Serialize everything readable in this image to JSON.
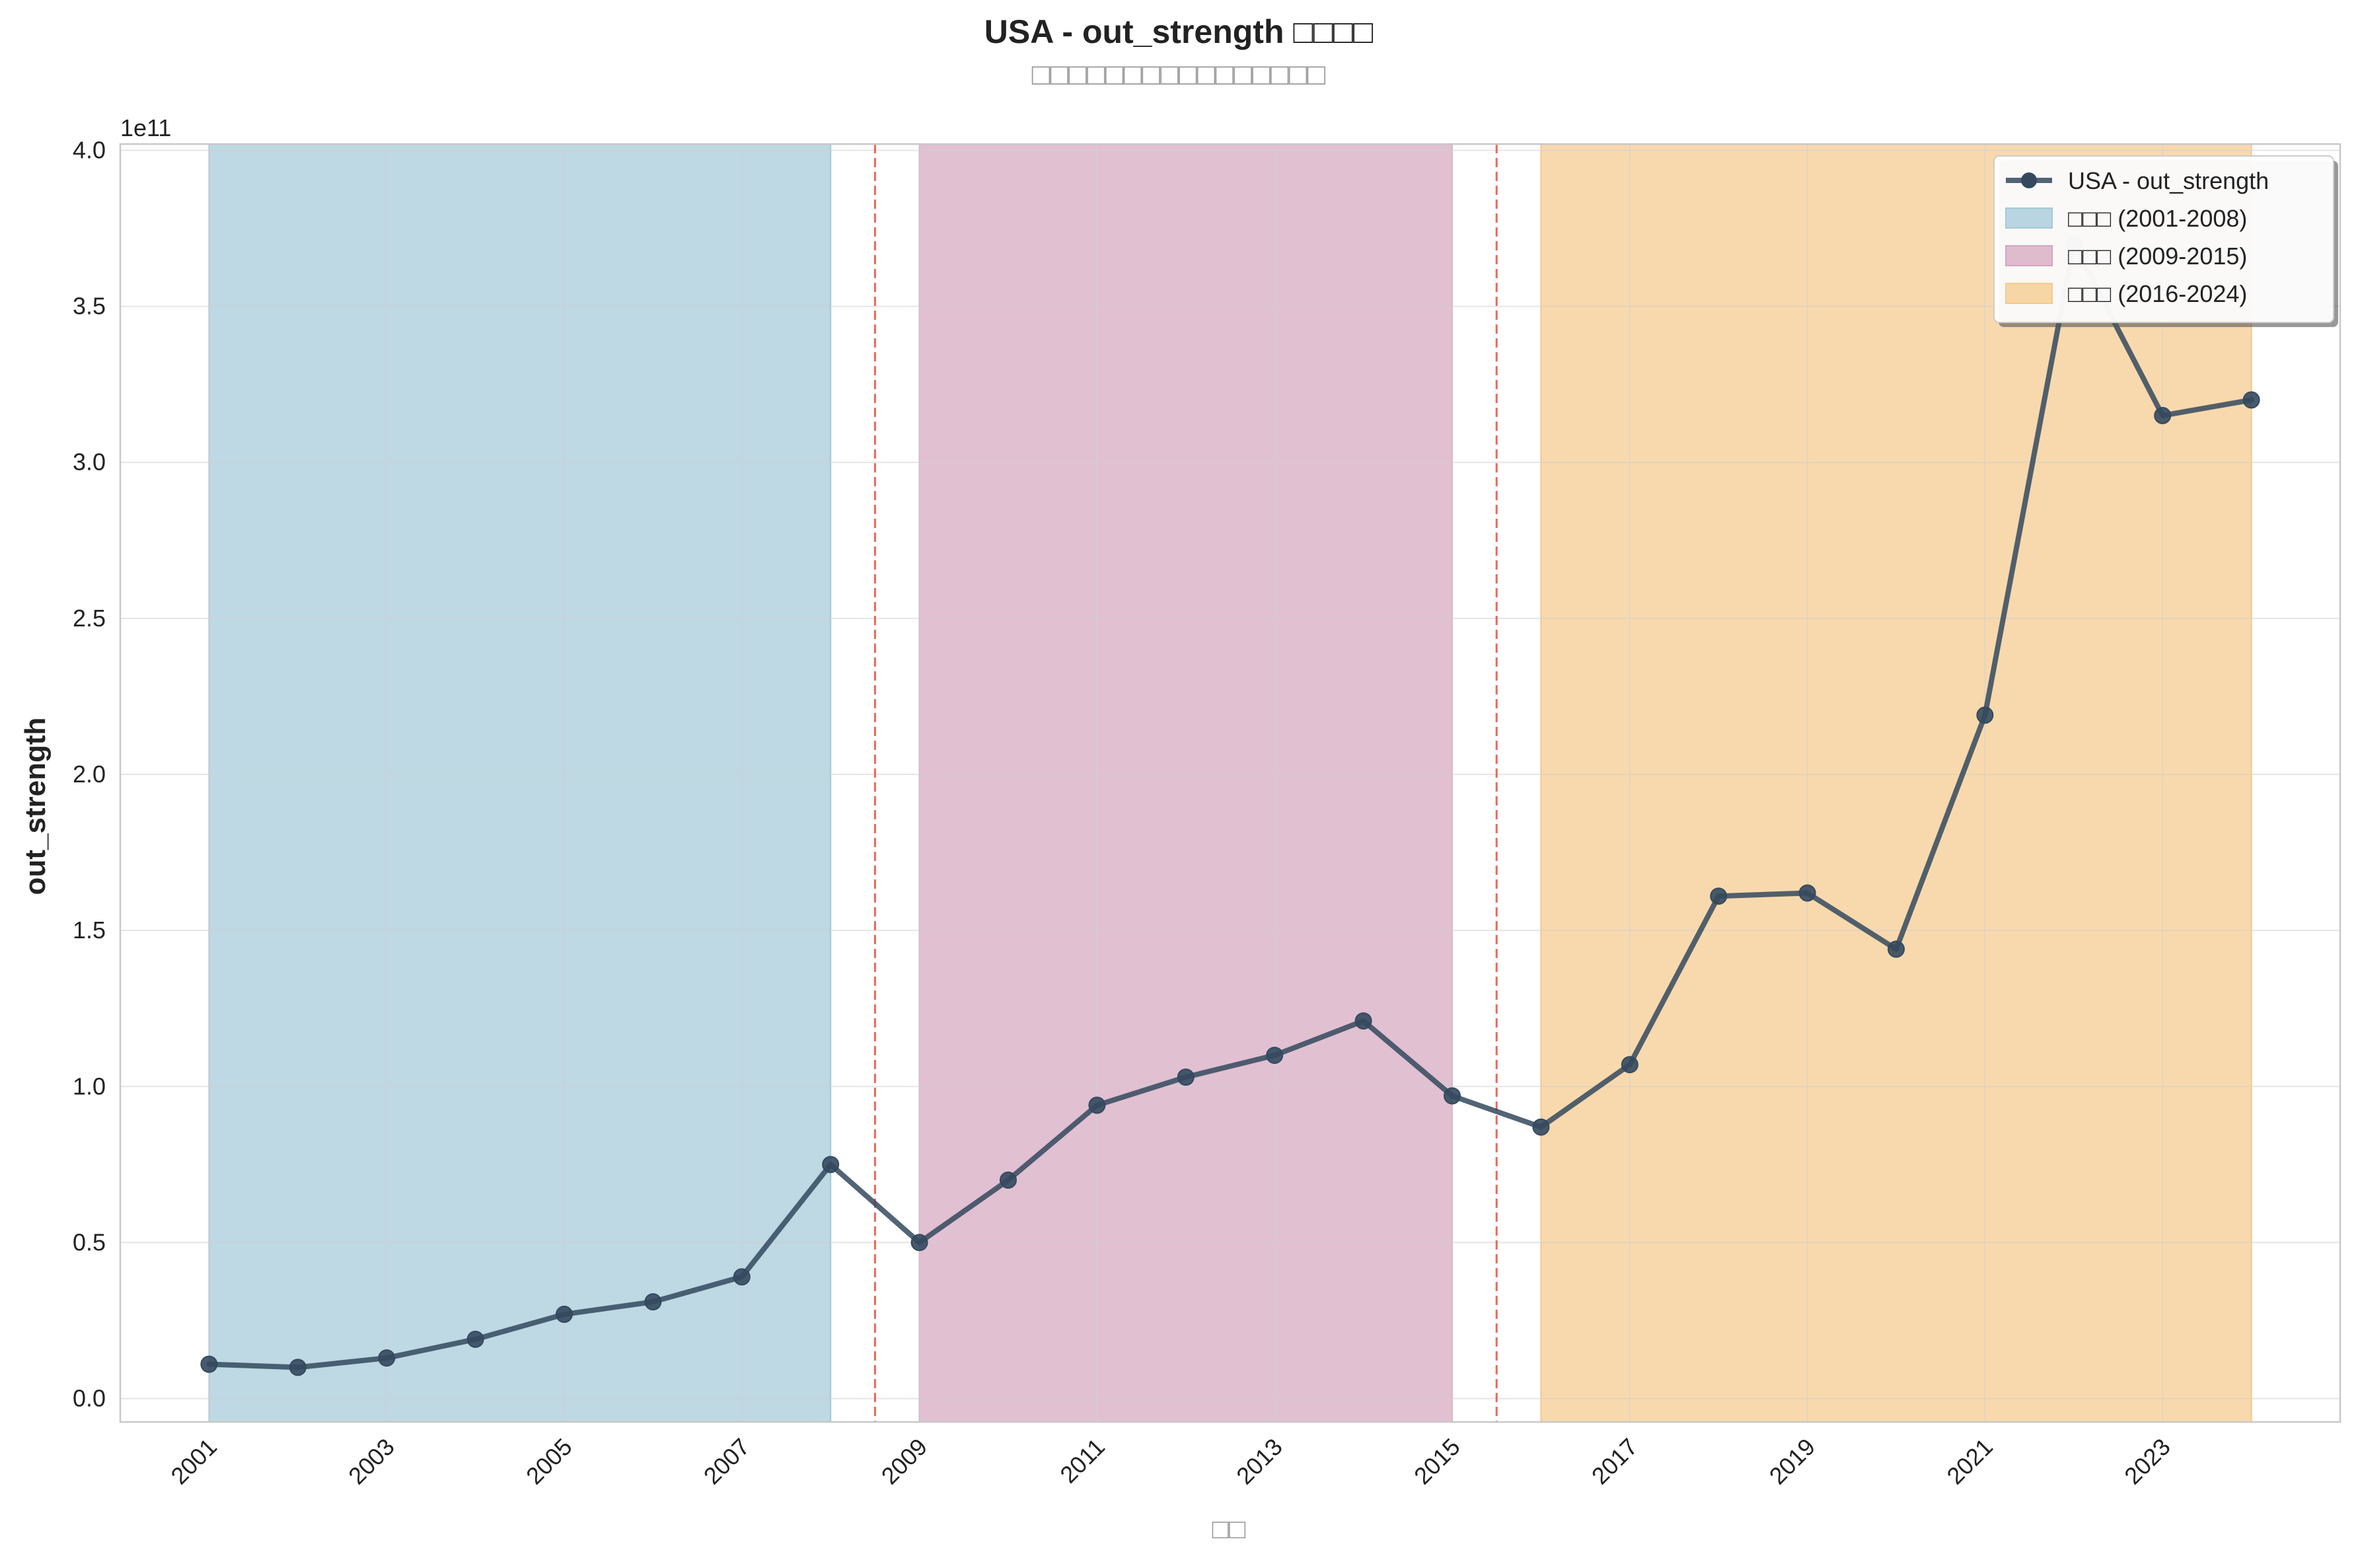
{
  "chart_data": {
    "type": "line",
    "title": "USA - out_strength □□□□",
    "subtitle": "□□□□□□□□□□□□□□□□",
    "xlabel": "□□",
    "ylabel": "out_strength",
    "y_offset_label": "1e11",
    "xlim": [
      2000.0,
      2025.0
    ],
    "ylim": [
      -0.075,
      4.02
    ],
    "x_ticks": [
      2001,
      2003,
      2005,
      2007,
      2009,
      2011,
      2013,
      2015,
      2017,
      2019,
      2021,
      2023
    ],
    "y_ticks": [
      0.0,
      0.5,
      1.0,
      1.5,
      2.0,
      2.5,
      3.0,
      3.5,
      4.0
    ],
    "y_tick_labels": [
      "0.0",
      "0.5",
      "1.0",
      "1.5",
      "2.0",
      "2.5",
      "3.0",
      "3.5",
      "4.0"
    ],
    "grid": true,
    "legend_position": "top-right",
    "series": [
      {
        "name": "USA - out_strength",
        "color": "#34495e",
        "x": [
          2001,
          2002,
          2003,
          2004,
          2005,
          2006,
          2007,
          2008,
          2009,
          2010,
          2011,
          2012,
          2013,
          2014,
          2015,
          2016,
          2017,
          2018,
          2019,
          2020,
          2021,
          2022,
          2023,
          2024
        ],
        "y": [
          0.11,
          0.1,
          0.13,
          0.19,
          0.27,
          0.31,
          0.39,
          0.75,
          0.5,
          0.7,
          0.94,
          1.03,
          1.1,
          1.21,
          0.97,
          0.87,
          1.07,
          1.61,
          1.62,
          1.44,
          2.19,
          3.7,
          3.15,
          3.2
        ]
      }
    ],
    "periods": [
      {
        "label": "□□□ (2001-2008)",
        "start": 2001,
        "end": 2008,
        "color": "#a3c8d9"
      },
      {
        "label": "□□□ (2009-2015)",
        "start": 2009,
        "end": 2015,
        "color": "#d4a5bf"
      },
      {
        "label": "□□□ (2016-2024)",
        "start": 2016,
        "end": 2024,
        "color": "#f5c98a"
      }
    ],
    "period_dividers": {
      "x": [
        2008.5,
        2015.5
      ],
      "color": "#e74c3c"
    }
  }
}
